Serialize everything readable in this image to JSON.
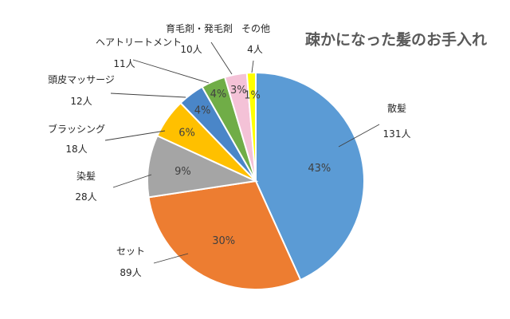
{
  "chart_data": {
    "type": "pie",
    "title": "疎かになった髪のお手入れ",
    "unit": "人",
    "slices": [
      {
        "label": "散髪",
        "count_label": "131人",
        "value": 131,
        "percent_label": "43%",
        "color": "#5B9BD5"
      },
      {
        "label": "セット",
        "count_label": "89人",
        "value": 89,
        "percent_label": "30%",
        "color": "#ED7D31"
      },
      {
        "label": "染髪",
        "count_label": "28人",
        "value": 28,
        "percent_label": "9%",
        "color": "#A5A5A5"
      },
      {
        "label": "ブラッシング",
        "count_label": "18人",
        "value": 18,
        "percent_label": "6%",
        "color": "#FFC000"
      },
      {
        "label": "頭皮マッサージ",
        "count_label": "12人",
        "value": 12,
        "percent_label": "4%",
        "color": "#4A86C8"
      },
      {
        "label": "ヘアトリートメント",
        "count_label": "11人",
        "value": 11,
        "percent_label": "4%",
        "color": "#70AD47"
      },
      {
        "label": "育毛剤・発毛剤",
        "count_label": "10人",
        "value": 10,
        "percent_label": "3%",
        "color": "#F4C2D7"
      },
      {
        "label": "その他",
        "count_label": "4人",
        "value": 4,
        "percent_label": "1%",
        "color": "#FFFF00"
      }
    ]
  }
}
